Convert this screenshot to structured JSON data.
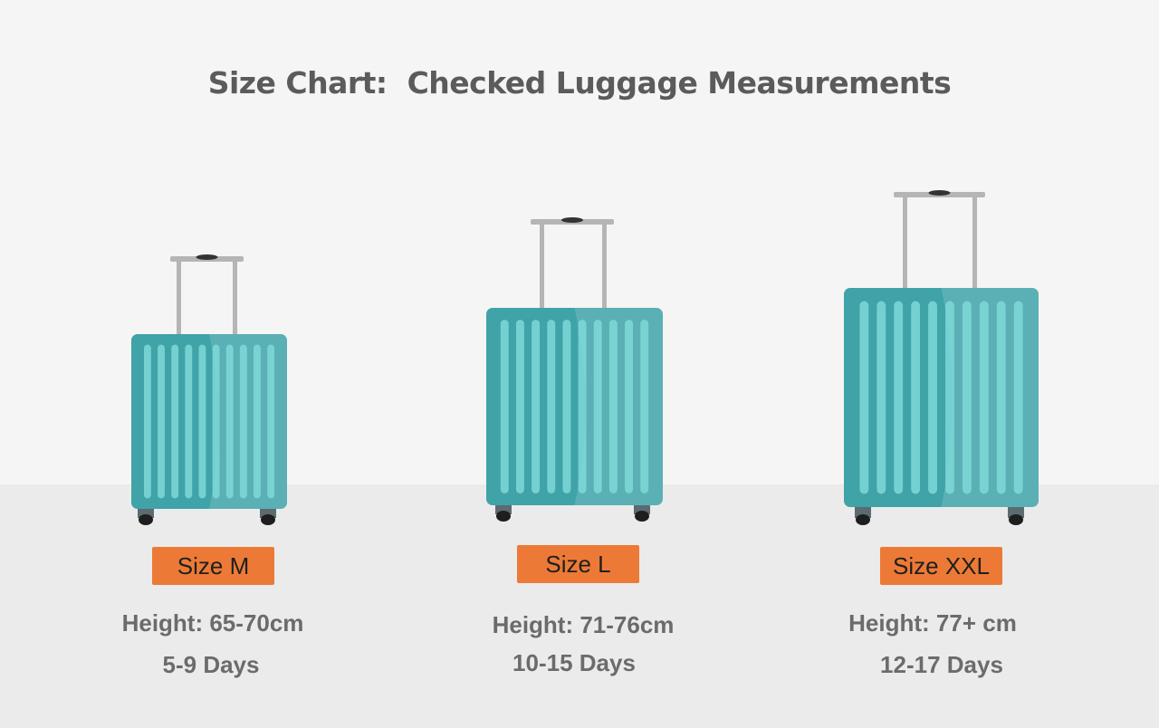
{
  "title": "Size Chart:  Checked Luggage Measurements",
  "colors": {
    "body": "#3fa3a8",
    "ribs": "#7fd9d8",
    "handle": "#b5b5b5",
    "wheel": "#1e1e1e",
    "badge": "#ec7a36",
    "text": "#6b6b6b"
  },
  "suitcases": [
    {
      "size": "Size M",
      "height": "Height: 65-70cm",
      "days": "5-9 Days"
    },
    {
      "size": "Size L",
      "height": "Height: 71-76cm",
      "days": "10-15 Days"
    },
    {
      "size": "Size XXL",
      "height": "Height: 77+ cm",
      "days": "12-17 Days"
    }
  ]
}
